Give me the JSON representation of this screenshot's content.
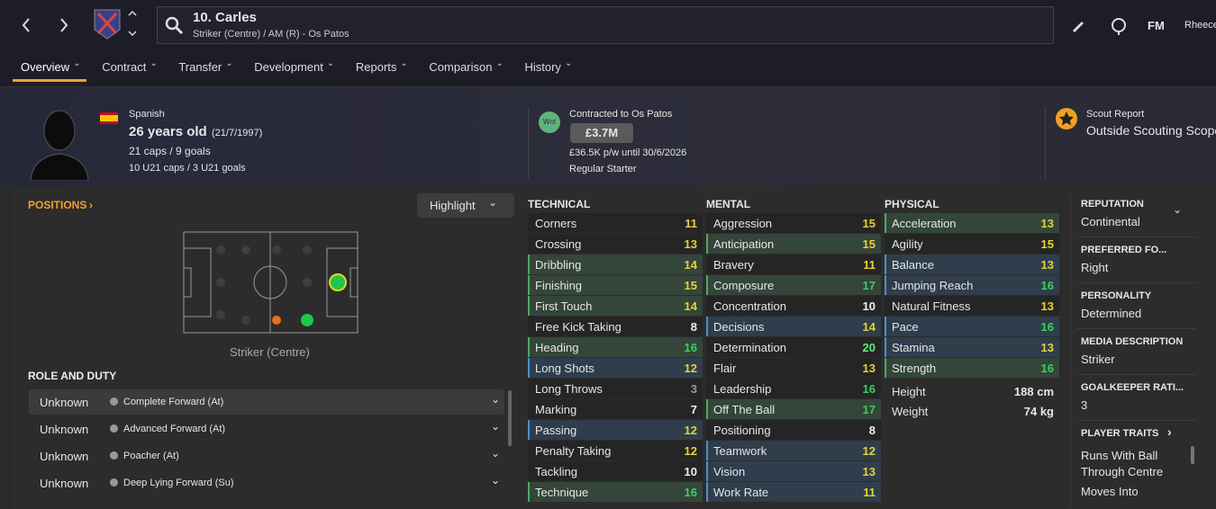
{
  "header": {
    "title": "10. Carles",
    "subtitle": "Striker (Centre) / AM (R) - Os Patos",
    "logo": "FM",
    "user": "Rheece"
  },
  "tabs": [
    "Overview",
    "Contract",
    "Transfer",
    "Development",
    "Reports",
    "Comparison",
    "History"
  ],
  "profile": {
    "nationality": "Spanish",
    "age": "26 years old",
    "dob": "(21/7/1997)",
    "caps": "21 caps / 9 goals",
    "u21": "10 U21 caps / 3 U21 goals"
  },
  "contract": {
    "badge": "Wnt",
    "title": "Contracted to Os Patos",
    "value": "£3.7M",
    "wage": "£36.5K p/w until 30/6/2026",
    "status": "Regular Starter"
  },
  "scout": {
    "title": "Scout Report",
    "value": "Outside Scouting Scope"
  },
  "positions": {
    "title": "POSITIONS",
    "highlight": "Highlight",
    "label": "Striker (Centre)"
  },
  "roles": {
    "title": "ROLE AND DUTY",
    "rows": [
      [
        "Unknown",
        "Complete Forward (At)"
      ],
      [
        "Unknown",
        "Advanced Forward (At)"
      ],
      [
        "Unknown",
        "Poacher (At)"
      ],
      [
        "Unknown",
        "Deep Lying Forward (Su)"
      ]
    ]
  },
  "attributes": [
    {
      "title": "TECHNICAL",
      "rows": [
        {
          "name": "Corners",
          "value": 11
        },
        {
          "name": "Crossing",
          "value": 13
        },
        {
          "name": "Dribbling",
          "value": 14,
          "highlight": "green"
        },
        {
          "name": "Finishing",
          "value": 15,
          "highlight": "green"
        },
        {
          "name": "First Touch",
          "value": 14,
          "highlight": "green"
        },
        {
          "name": "Free Kick Taking",
          "value": 8
        },
        {
          "name": "Heading",
          "value": 16,
          "highlight": "green"
        },
        {
          "name": "Long Shots",
          "value": 12,
          "highlight": "blue"
        },
        {
          "name": "Long Throws",
          "value": 3
        },
        {
          "name": "Marking",
          "value": 7
        },
        {
          "name": "Passing",
          "value": 12,
          "highlight": "blue"
        },
        {
          "name": "Penalty Taking",
          "value": 12
        },
        {
          "name": "Tackling",
          "value": 10
        },
        {
          "name": "Technique",
          "value": 16,
          "highlight": "green"
        }
      ]
    },
    {
      "title": "MENTAL",
      "rows": [
        {
          "name": "Aggression",
          "value": 15
        },
        {
          "name": "Anticipation",
          "value": 15,
          "highlight": "green"
        },
        {
          "name": "Bravery",
          "value": 11
        },
        {
          "name": "Composure",
          "value": 17,
          "highlight": "green"
        },
        {
          "name": "Concentration",
          "value": 10
        },
        {
          "name": "Decisions",
          "value": 14,
          "highlight": "blue"
        },
        {
          "name": "Determination",
          "value": 20
        },
        {
          "name": "Flair",
          "value": 13
        },
        {
          "name": "Leadership",
          "value": 16
        },
        {
          "name": "Off The Ball",
          "value": 17,
          "highlight": "green"
        },
        {
          "name": "Positioning",
          "value": 8
        },
        {
          "name": "Teamwork",
          "value": 12,
          "highlight": "blue"
        },
        {
          "name": "Vision",
          "value": 13,
          "highlight": "blue"
        },
        {
          "name": "Work Rate",
          "value": 11,
          "highlight": "blue"
        }
      ]
    },
    {
      "title": "PHYSICAL",
      "rows": [
        {
          "name": "Acceleration",
          "value": 13,
          "highlight": "green"
        },
        {
          "name": "Agility",
          "value": 15
        },
        {
          "name": "Balance",
          "value": 13,
          "highlight": "blue"
        },
        {
          "name": "Jumping Reach",
          "value": 16,
          "highlight": "blue"
        },
        {
          "name": "Natural Fitness",
          "value": 13
        },
        {
          "name": "Pace",
          "value": 16,
          "highlight": "blue"
        },
        {
          "name": "Stamina",
          "value": 13,
          "highlight": "blue"
        },
        {
          "name": "Strength",
          "value": 16,
          "highlight": "green"
        }
      ]
    }
  ],
  "physique": [
    [
      "Height",
      "188 cm"
    ],
    [
      "Weight",
      "74 kg"
    ]
  ],
  "info": [
    {
      "label": "REPUTATION",
      "value": "Continental"
    },
    {
      "label": "PREFERRED FO...",
      "value": "Right"
    },
    {
      "label": "PERSONALITY",
      "value": "Determined"
    },
    {
      "label": "MEDIA DESCRIPTION",
      "value": "Striker"
    },
    {
      "label": "GOALKEEPER RATI...",
      "value": "3"
    }
  ],
  "traits": {
    "title": "PLAYER TRAITS",
    "items": [
      "Runs With Ball Through Centre",
      "Moves Into"
    ]
  }
}
